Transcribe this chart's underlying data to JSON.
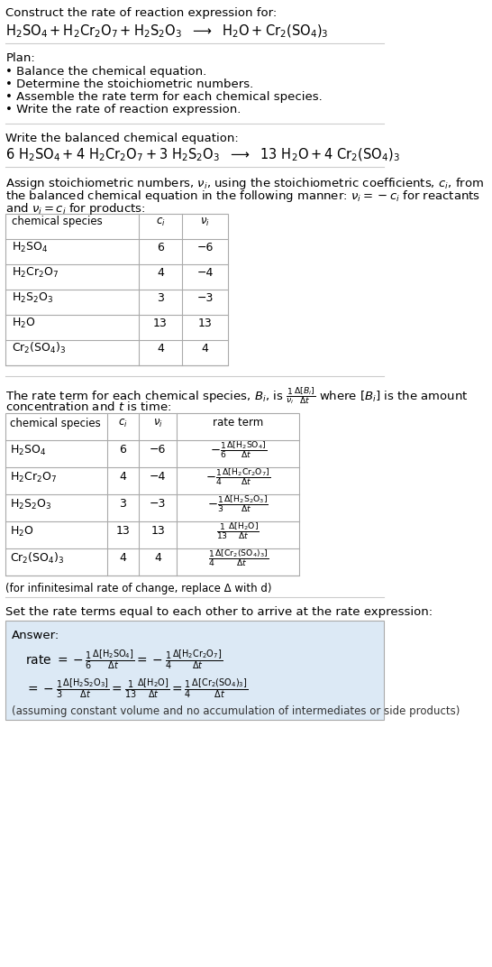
{
  "title_line1": "Construct the rate of reaction expression for:",
  "title_line2": "H_2SO_4 + H_2Cr_2O_7 + H_2S_2O_3  ⟶  H_2O + Cr_2(SO_4)_3",
  "plan_header": "Plan:",
  "plan_items": [
    "• Balance the chemical equation.",
    "• Determine the stoichiometric numbers.",
    "• Assemble the rate term for each chemical species.",
    "• Write the rate of reaction expression."
  ],
  "balanced_header": "Write the balanced chemical equation:",
  "balanced_eq": "6 H_2SO_4 + 4 H_2Cr_2O_7 + 3 H_2S_2O_3  ⟶  13 H_2O + 4 Cr_2(SO_4)_3",
  "stoich_intro": "Assign stoichiometric numbers, $\\nu_i$, using the stoichiometric coefficients, $c_i$, from\nthe balanced chemical equation in the following manner: $\\nu_i = -c_i$ for reactants\nand $\\nu_i = c_i$ for products:",
  "table1_headers": [
    "chemical species",
    "$c_i$",
    "$\\nu_i$"
  ],
  "table1_rows": [
    [
      "$\\mathregular{H_2SO_4}$",
      "6",
      "−6"
    ],
    [
      "$\\mathregular{H_2Cr_2O_7}$",
      "4",
      "−4"
    ],
    [
      "$\\mathregular{H_2S_2O_3}$",
      "3",
      "−3"
    ],
    [
      "$\\mathregular{H_2O}$",
      "13",
      "13"
    ],
    [
      "$\\mathregular{Cr_2(SO_4)_3}$",
      "4",
      "4"
    ]
  ],
  "rate_term_intro": "The rate term for each chemical species, $B_i$, is $\\frac{1}{\\nu_i}\\frac{\\Delta[B_i]}{\\Delta t}$ where $[B_i]$ is the amount\nconcentration and $t$ is time:",
  "table2_headers": [
    "chemical species",
    "$c_i$",
    "$\\nu_i$",
    "rate term"
  ],
  "table2_rows": [
    [
      "$\\mathregular{H_2SO_4}$",
      "6",
      "−6",
      "$-\\frac{1}{6}\\frac{\\Delta[\\mathregular{H_2SO_4}]}{\\Delta t}$"
    ],
    [
      "$\\mathregular{H_2Cr_2O_7}$",
      "4",
      "−4",
      "$-\\frac{1}{4}\\frac{\\Delta[\\mathregular{H_2Cr_2O_7}]}{\\Delta t}$"
    ],
    [
      "$\\mathregular{H_2S_2O_3}$",
      "3",
      "−3",
      "$-\\frac{1}{3}\\frac{\\Delta[\\mathregular{H_2S_2O_3}]}{\\Delta t}$"
    ],
    [
      "$\\mathregular{H_2O}$",
      "13",
      "13",
      "$\\frac{1}{13}\\frac{\\Delta[\\mathregular{H_2O}]}{\\Delta t}$"
    ],
    [
      "$\\mathregular{Cr_2(SO_4)_3}$",
      "4",
      "4",
      "$\\frac{1}{4}\\frac{\\Delta[\\mathregular{Cr_2(SO_4)_3}]}{\\Delta t}$"
    ]
  ],
  "infinitesimal_note": "(for infinitesimal rate of change, replace Δ with d)",
  "set_rate_text": "Set the rate terms equal to each other to arrive at the rate expression:",
  "answer_line1": "rate $= -\\frac{1}{6}\\frac{\\Delta[\\mathregular{H_2SO_4}]}{\\Delta t} = -\\frac{1}{4}\\frac{\\Delta[\\mathregular{H_2Cr_2O_7}]}{\\Delta t}$",
  "answer_line2": "$= -\\frac{1}{3}\\frac{\\Delta[\\mathregular{H_2S_2O_3}]}{\\Delta t} = \\frac{1}{13}\\frac{\\Delta[\\mathregular{H_2O}]}{\\Delta t} = \\frac{1}{4}\\frac{\\Delta[\\mathregular{Cr_2(SO_4)_3}]}{\\Delta t}$",
  "answer_note": "(assuming constant volume and no accumulation of intermediates or side products)",
  "bg_color": "#ffffff",
  "answer_box_color": "#dce9f5",
  "text_color": "#000000",
  "table_border_color": "#aaaaaa",
  "separator_color": "#cccccc",
  "font_size": 9.5,
  "small_font_size": 8.5
}
